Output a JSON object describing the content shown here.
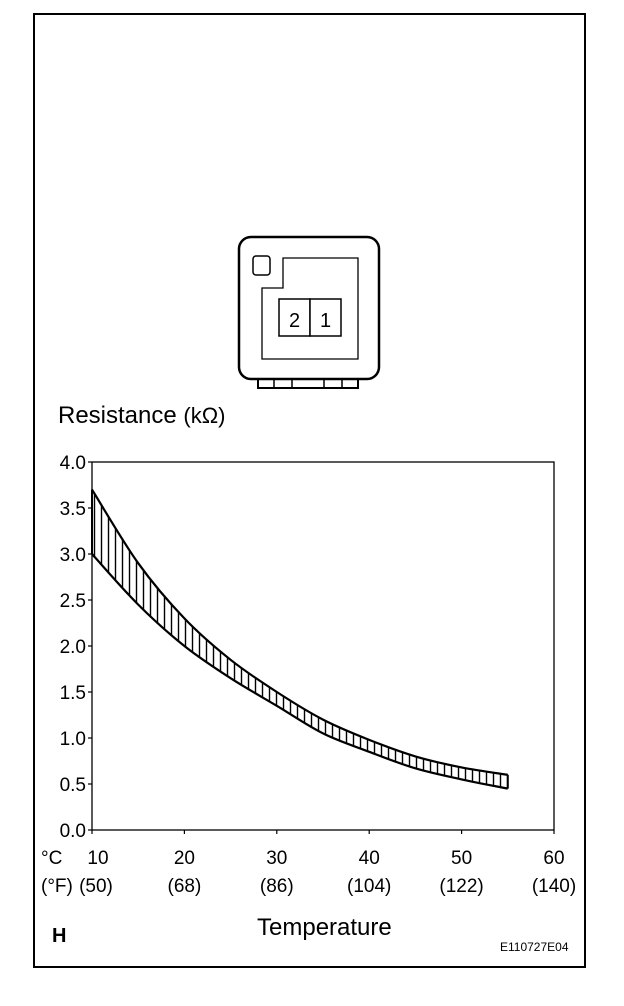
{
  "labels": {
    "ylabel": "Resistance",
    "yunit": "(kΩ)",
    "xlabel": "Temperature",
    "unit_c": "°C",
    "unit_f": "(°F)",
    "corner": "H",
    "figure_code": "E110727E04"
  },
  "connector": {
    "pins": [
      "2",
      "1"
    ]
  },
  "chart_data": {
    "type": "area",
    "xlabel": "Temperature",
    "ylabel": "Resistance (kΩ)",
    "xlim": [
      10,
      60
    ],
    "ylim": [
      0,
      4
    ],
    "grid": false,
    "x_ticks": [
      "10",
      "20",
      "30",
      "40",
      "50",
      "60"
    ],
    "x_ticks_f": [
      "(50)",
      "(68)",
      "(86)",
      "(104)",
      "(122)",
      "(140)"
    ],
    "y_ticks": [
      "4.0",
      "3.5",
      "3.0",
      "2.5",
      "2.0",
      "1.5",
      "1.0",
      "0.5",
      "0.0"
    ],
    "series": [
      {
        "x": [
          10,
          15,
          20,
          25,
          30,
          35,
          40,
          45,
          50,
          55
        ],
        "values": [
          3.7,
          2.9,
          2.3,
          1.85,
          1.5,
          1.2,
          0.98,
          0.8,
          0.68,
          0.6
        ]
      },
      {
        "x": [
          10,
          15,
          20,
          25,
          30,
          35,
          40,
          45,
          50,
          55
        ],
        "values": [
          3.0,
          2.45,
          2.0,
          1.65,
          1.35,
          1.05,
          0.85,
          0.67,
          0.55,
          0.45
        ]
      }
    ]
  }
}
